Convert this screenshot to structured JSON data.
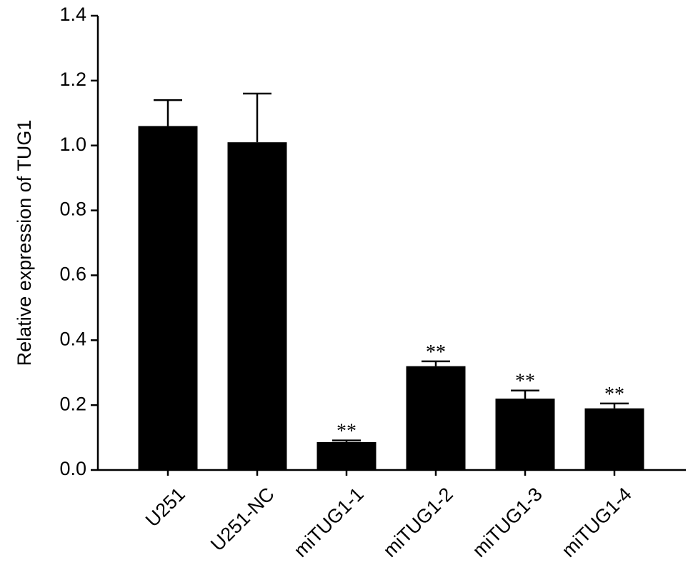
{
  "chart_data": {
    "type": "bar",
    "y_label": "Relative expression of TUG1",
    "categories": [
      "U251",
      "U251-NC",
      "miTUG1-1",
      "miTUG1-2",
      "miTUG1-3",
      "miTUG1-4"
    ],
    "values": [
      1.06,
      1.01,
      0.086,
      0.32,
      0.22,
      0.19
    ],
    "errors": [
      0.08,
      0.15,
      0.005,
      0.015,
      0.025,
      0.015
    ],
    "annotations": [
      null,
      null,
      "**",
      "**",
      "**",
      "**"
    ],
    "color": "#000000",
    "ylim": [
      0,
      1.4
    ],
    "yticks": [
      {
        "value": 0,
        "label": "0.0"
      },
      0.2,
      0.4,
      0.6,
      0.8,
      {
        "value": 1,
        "label": "1.0"
      },
      1.2,
      1.4
    ]
  }
}
